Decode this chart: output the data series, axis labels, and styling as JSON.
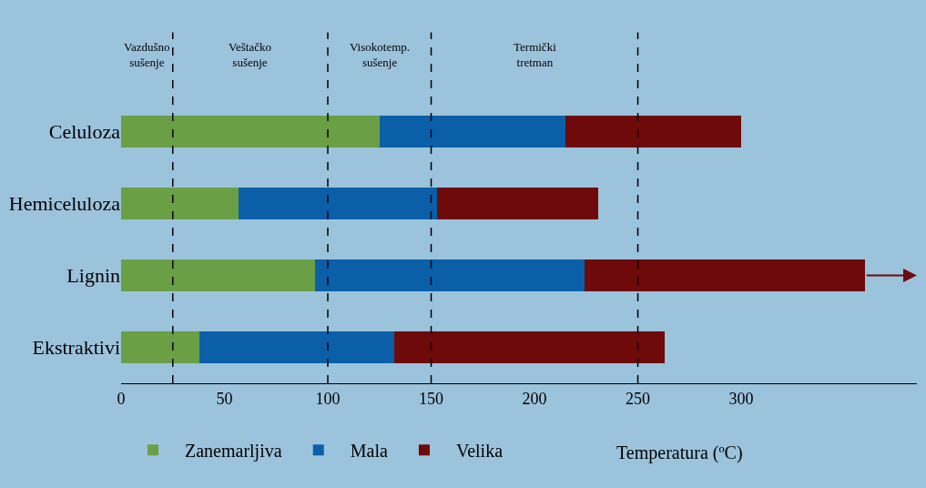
{
  "chart_data": {
    "type": "bar",
    "orientation": "horizontal",
    "stacked": true,
    "categories": [
      "Celuloza",
      "Hemiceluloza",
      "Lignin",
      "Ekstraktivi"
    ],
    "series": [
      {
        "name": "Zanemarljiva",
        "color": "#6a9f45",
        "values": [
          125,
          57,
          94,
          38
        ]
      },
      {
        "name": "Mala",
        "color": "#0b5fa8",
        "values": [
          90,
          96,
          130,
          94
        ]
      },
      {
        "name": "Velika",
        "color": "#6e0a0a",
        "values": [
          85,
          78,
          136,
          131
        ]
      }
    ],
    "xlabel": "Temperatura (ºC)",
    "xlim": [
      0,
      385
    ],
    "xticks": [
      0,
      50,
      100,
      150,
      200,
      250,
      300
    ],
    "ref_lines": [
      {
        "axis": "x",
        "value": 25,
        "line_style": "dashed",
        "color": "#000000"
      },
      {
        "axis": "x",
        "value": 100,
        "line_style": "dashed",
        "color": "#000000"
      },
      {
        "axis": "x",
        "value": 150,
        "line_style": "dashed",
        "color": "#000000"
      },
      {
        "axis": "x",
        "value": 250,
        "line_style": "dashed",
        "color": "#000000"
      }
    ],
    "annotations": [
      "Vazdušno\nsušenje",
      "Veštačko\nsušenje",
      "Visokotemp.\nsušenje",
      "Termički\ntretman"
    ],
    "legend": "bottom",
    "grid": false
  }
}
